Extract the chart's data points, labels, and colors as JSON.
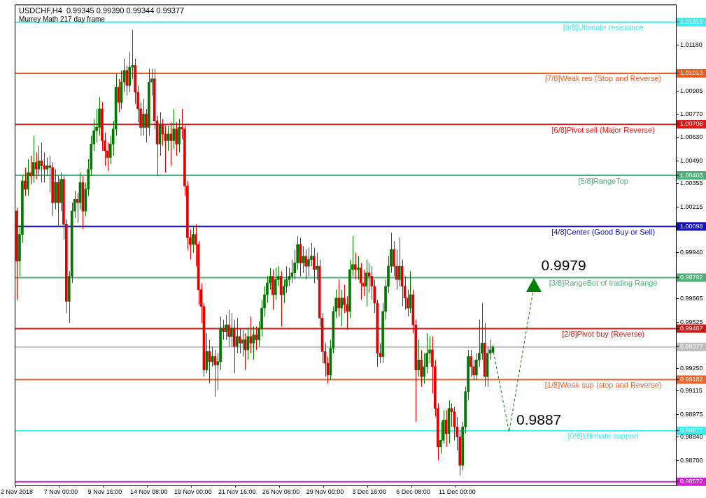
{
  "chart_data": {
    "type": "candlestick",
    "title": "USDCHF,H4  0.99345 0.99390 0.99344 0.99377",
    "subtitle": "Murrey Math 217 day frame",
    "categories": [
      "2 Nov 2018",
      null,
      null,
      null,
      null,
      null,
      null,
      null,
      null,
      null,
      null,
      null,
      null,
      null,
      null,
      null,
      "7 Nov 00:00",
      null,
      null,
      null,
      null,
      null,
      null,
      null,
      null,
      null,
      null,
      null,
      null,
      null,
      null,
      null,
      "9 Nov 16:00",
      null,
      null,
      null,
      null,
      null,
      null,
      null,
      null,
      null,
      null,
      null,
      null,
      null,
      null,
      null,
      "14 Nov 08:00",
      null,
      null,
      null,
      null,
      null,
      null,
      null,
      null,
      null,
      null,
      null,
      null,
      null,
      null,
      null,
      "19 Nov 00:00",
      null,
      null,
      null,
      null,
      null,
      null,
      null,
      null,
      null,
      null,
      null,
      null,
      null,
      null,
      null,
      "21 Nov 16:00",
      null,
      null,
      null,
      null,
      null,
      null,
      null,
      null,
      null,
      null,
      null,
      null,
      null,
      null,
      null,
      "26 Nov 08:00",
      null,
      null,
      null,
      null,
      null,
      null,
      null,
      null,
      null,
      null,
      null,
      null,
      null,
      null,
      null,
      "29 Nov 00:00",
      null,
      null,
      null,
      null,
      null,
      null,
      null,
      null,
      null,
      null,
      null,
      null,
      null,
      null,
      null,
      "3 Dec 16:00",
      null,
      null,
      null,
      null,
      null,
      null,
      null,
      null,
      null,
      null,
      null,
      null,
      null,
      null,
      null,
      "6 Dec 08:00",
      null,
      null,
      null,
      null,
      null,
      null,
      null,
      null,
      null,
      null,
      null,
      null,
      null,
      null,
      null,
      "11 Dec 00:00",
      null,
      null,
      null,
      null,
      null,
      null,
      null,
      null,
      null,
      null,
      null,
      null,
      null,
      null,
      null,
      null,
      null,
      null,
      null,
      null,
      null,
      null,
      null,
      null,
      null,
      null,
      null,
      null,
      null,
      null,
      null,
      null,
      null,
      null,
      null,
      null,
      null,
      null,
      null,
      null,
      null,
      null,
      null,
      null,
      null,
      null,
      null,
      null,
      null,
      null,
      null,
      null,
      null,
      null,
      null,
      null,
      null,
      null,
      null,
      null,
      null,
      null,
      null,
      null,
      null,
      null,
      null,
      null,
      null,
      null,
      null,
      null,
      null,
      null,
      null,
      null,
      null,
      null,
      null
    ],
    "ohlc": [
      [
        1.0019,
        1.0021,
        0.9966,
        0.9989
      ],
      [
        0.9989,
        1.001,
        0.998,
        1.0005
      ],
      [
        1.0005,
        1.004,
        1.0,
        1.0037
      ],
      [
        1.0037,
        1.0045,
        1.0028,
        1.0032
      ],
      [
        1.0032,
        1.005,
        1.0028,
        1.0042
      ],
      [
        1.0042,
        1.0052,
        1.0035,
        1.004
      ],
      [
        1.004,
        1.0064,
        1.0036,
        1.0048
      ],
      [
        1.0048,
        1.0054,
        1.0038,
        1.0044
      ],
      [
        1.0044,
        1.0058,
        1.004,
        1.0049
      ],
      [
        1.0049,
        1.006,
        1.0036,
        1.0046
      ],
      [
        1.0046,
        1.0054,
        1.0036,
        1.0044
      ],
      [
        1.0044,
        1.0051,
        1.004,
        1.0046
      ],
      [
        1.0046,
        1.0052,
        1.003,
        1.0045
      ],
      [
        1.0045,
        1.0048,
        1.0016,
        1.0024
      ],
      [
        1.0024,
        1.0044,
        1.002,
        1.0036
      ],
      [
        1.0036,
        1.004,
        1.001,
        1.0024
      ],
      [
        1.0024,
        1.0042,
        1.0019,
        1.0038
      ],
      [
        1.0038,
        1.004,
        1.0002,
        1.0011
      ],
      [
        1.0011,
        1.0014,
        0.9958,
        0.9965
      ],
      [
        0.9965,
        0.9983,
        0.9952,
        0.998
      ],
      [
        0.998,
        1.0024,
        0.9976,
        1.0019
      ],
      [
        1.0019,
        1.0031,
        1.0015,
        1.0026
      ],
      [
        1.0026,
        1.003,
        1.0012,
        1.0024
      ],
      [
        1.0024,
        1.0042,
        1.002,
        1.0036
      ],
      [
        1.0036,
        1.004,
        1.0008,
        1.0019
      ],
      [
        1.0019,
        1.0036,
        1.0016,
        1.0032
      ],
      [
        1.0032,
        1.005,
        1.0028,
        1.0044
      ],
      [
        1.0044,
        1.0064,
        1.004,
        1.0059
      ],
      [
        1.0059,
        1.0074,
        1.0055,
        1.0067
      ],
      [
        1.0067,
        1.008,
        1.006,
        1.0069
      ],
      [
        1.0069,
        1.0087,
        1.0064,
        1.008
      ],
      [
        1.008,
        1.0084,
        1.0055,
        1.0061
      ],
      [
        1.0061,
        1.0066,
        1.0046,
        1.0055
      ],
      [
        1.0055,
        1.006,
        1.0043,
        1.0051
      ],
      [
        1.0051,
        1.0064,
        1.0047,
        1.0059
      ],
      [
        1.0059,
        1.0073,
        1.0052,
        1.0068
      ],
      [
        1.0068,
        1.0101,
        1.0064,
        1.0093
      ],
      [
        1.0093,
        1.0098,
        1.0078,
        1.0084
      ],
      [
        1.0084,
        1.0103,
        1.008,
        1.0096
      ],
      [
        1.0096,
        1.011,
        1.009,
        1.0103
      ],
      [
        1.0103,
        1.0106,
        1.0088,
        1.0094
      ],
      [
        1.0094,
        1.0114,
        1.009,
        1.0105
      ],
      [
        1.0105,
        1.0127,
        1.0098,
        1.0106
      ],
      [
        1.0106,
        1.011,
        1.0083,
        1.009
      ],
      [
        1.009,
        1.0094,
        1.0072,
        1.008
      ],
      [
        1.008,
        1.0084,
        1.0064,
        1.0069
      ],
      [
        1.0069,
        1.0086,
        1.0064,
        1.0077
      ],
      [
        1.0077,
        1.008,
        1.006,
        1.0069
      ],
      [
        1.0069,
        1.0104,
        1.0064,
        1.0096
      ],
      [
        1.0096,
        1.0104,
        1.0088,
        1.0098
      ],
      [
        1.0098,
        1.0104,
        1.0068,
        1.0073
      ],
      [
        1.0073,
        1.0076,
        1.004,
        1.0059
      ],
      [
        1.0059,
        1.0078,
        1.0052,
        1.0071
      ],
      [
        1.0071,
        1.0074,
        1.0058,
        1.0065
      ],
      [
        1.0065,
        1.007,
        1.0042,
        1.0061
      ],
      [
        1.0061,
        1.007,
        1.0055,
        1.0065
      ],
      [
        1.0065,
        1.0072,
        1.0046,
        1.0061
      ],
      [
        1.0061,
        1.008,
        1.0056,
        1.0068
      ],
      [
        1.0068,
        1.0072,
        1.0052,
        1.0059
      ],
      [
        1.0059,
        1.0074,
        1.0054,
        1.0069
      ],
      [
        1.0069,
        1.008,
        1.0062,
        1.0068
      ],
      [
        1.0068,
        1.007,
        1.0028,
        1.0034
      ],
      [
        1.0034,
        1.0037,
        0.9996,
        1.0003
      ],
      [
        1.0003,
        1.0008,
        0.999,
        0.9999
      ],
      [
        0.9999,
        1.001,
        0.9994,
        1.0005
      ],
      [
        1.0005,
        1.0011,
        0.9986,
        0.9999
      ],
      [
        0.9999,
        1.0001,
        0.9963,
        0.9972
      ],
      [
        0.9972,
        0.9976,
        0.9952,
        0.9962
      ],
      [
        0.9962,
        0.9964,
        0.992,
        0.9924
      ],
      [
        0.9924,
        0.9946,
        0.9922,
        0.9935
      ],
      [
        0.9935,
        0.9942,
        0.9916,
        0.9929
      ],
      [
        0.9929,
        0.9938,
        0.9926,
        0.9932
      ],
      [
        0.9932,
        0.9936,
        0.9908,
        0.9927
      ],
      [
        0.9927,
        0.9934,
        0.9912,
        0.9929
      ],
      [
        0.9929,
        0.9956,
        0.9924,
        0.9949
      ],
      [
        0.9949,
        0.9954,
        0.9942,
        0.9947
      ],
      [
        0.9947,
        0.9957,
        0.9942,
        0.9951
      ],
      [
        0.9951,
        0.996,
        0.9938,
        0.9944
      ],
      [
        0.9944,
        0.9958,
        0.9938,
        0.9949
      ],
      [
        0.9949,
        0.9954,
        0.9922,
        0.9938
      ],
      [
        0.9938,
        0.9955,
        0.9934,
        0.9944
      ],
      [
        0.9944,
        0.9949,
        0.9934,
        0.994
      ],
      [
        0.994,
        0.9948,
        0.9932,
        0.9942
      ],
      [
        0.9942,
        0.9946,
        0.9924,
        0.9936
      ],
      [
        0.9936,
        0.9949,
        0.993,
        0.9944
      ],
      [
        0.9944,
        0.9956,
        0.9934,
        0.994
      ],
      [
        0.994,
        0.995,
        0.993,
        0.9945
      ],
      [
        0.9945,
        0.995,
        0.9936,
        0.9942
      ],
      [
        0.9942,
        0.9953,
        0.9938,
        0.9949
      ],
      [
        0.9949,
        0.9966,
        0.9944,
        0.9961
      ],
      [
        0.9961,
        0.9974,
        0.9956,
        0.9969
      ],
      [
        0.9969,
        0.998,
        0.9964,
        0.9976
      ],
      [
        0.9976,
        0.9985,
        0.9972,
        0.998
      ],
      [
        0.998,
        0.9984,
        0.996,
        0.9969
      ],
      [
        0.9969,
        0.9985,
        0.9966,
        0.9978
      ],
      [
        0.9978,
        0.9986,
        0.9974,
        0.998
      ],
      [
        0.998,
        0.9983,
        0.995,
        0.9969
      ],
      [
        0.9969,
        0.9978,
        0.9964,
        0.9974
      ],
      [
        0.9974,
        0.9986,
        0.997,
        0.9978
      ],
      [
        0.9978,
        0.9985,
        0.9974,
        0.998
      ],
      [
        0.998,
        0.999,
        0.9976,
        0.9982
      ],
      [
        0.9982,
        0.9996,
        0.9978,
        0.9988
      ],
      [
        0.9988,
        1.0004,
        0.9984,
        0.9999
      ],
      [
        0.9999,
        1.0003,
        0.998,
        0.9988
      ],
      [
        0.9988,
        0.9998,
        0.9982,
        0.9992
      ],
      [
        0.9992,
        0.9996,
        0.9978,
        0.9986
      ],
      [
        0.9986,
        0.9997,
        0.998,
        0.999
      ],
      [
        0.999,
        1.0,
        0.9986,
        0.9992
      ],
      [
        0.9992,
        0.9997,
        0.9976,
        0.9984
      ],
      [
        0.9984,
        0.9994,
        0.9978,
        0.9986
      ],
      [
        0.9986,
        0.999,
        0.995,
        0.9955
      ],
      [
        0.9955,
        0.9958,
        0.9928,
        0.9935
      ],
      [
        0.9935,
        0.994,
        0.992,
        0.9928
      ],
      [
        0.9928,
        0.9932,
        0.9916,
        0.9921
      ],
      [
        0.9921,
        0.9942,
        0.9918,
        0.9937
      ],
      [
        0.9937,
        0.9962,
        0.9934,
        0.9959
      ],
      [
        0.9959,
        0.9972,
        0.9955,
        0.9967
      ],
      [
        0.9967,
        0.9978,
        0.9956,
        0.9961
      ],
      [
        0.9961,
        0.9972,
        0.995,
        0.9967
      ],
      [
        0.9967,
        0.9975,
        0.9958,
        0.9963
      ],
      [
        0.9963,
        0.9968,
        0.9948,
        0.9959
      ],
      [
        0.9959,
        0.999,
        0.9955,
        0.9984
      ],
      [
        0.9984,
        1.0004,
        0.998,
        0.9987
      ],
      [
        0.9987,
        0.9994,
        0.9978,
        0.9984
      ],
      [
        0.9984,
        0.9992,
        0.9978,
        0.9985
      ],
      [
        0.9985,
        0.9988,
        0.9966,
        0.9976
      ],
      [
        0.9976,
        0.9984,
        0.9968,
        0.9974
      ],
      [
        0.9974,
        0.999,
        0.9962,
        0.9982
      ],
      [
        0.9982,
        0.9988,
        0.997,
        0.998
      ],
      [
        0.998,
        0.9986,
        0.9966,
        0.9974
      ],
      [
        0.9974,
        0.9978,
        0.9958,
        0.9964
      ],
      [
        0.9964,
        0.9966,
        0.9926,
        0.9934
      ],
      [
        0.9934,
        0.994,
        0.9928,
        0.9932
      ],
      [
        0.9932,
        0.9964,
        0.9928,
        0.9959
      ],
      [
        0.9959,
        0.9978,
        0.9954,
        0.9974
      ],
      [
        0.9974,
        0.9992,
        0.997,
        0.9986
      ],
      [
        0.9986,
        1.0006,
        0.9982,
        0.9996
      ],
      [
        0.9996,
        1.0001,
        0.998,
        0.9986
      ],
      [
        0.9986,
        0.9996,
        0.9972,
        0.9978
      ],
      [
        0.9978,
        1.0003,
        0.9974,
        0.9986
      ],
      [
        0.9986,
        0.999,
        0.9962,
        0.9974
      ],
      [
        0.9974,
        0.998,
        0.996,
        0.9967
      ],
      [
        0.9967,
        0.9972,
        0.9956,
        0.9961
      ],
      [
        0.9961,
        0.9983,
        0.9958,
        0.9969
      ],
      [
        0.9969,
        0.9972,
        0.9946,
        0.9951
      ],
      [
        0.9951,
        0.9954,
        0.9893,
        0.9924
      ],
      [
        0.9924,
        0.9942,
        0.992,
        0.993
      ],
      [
        0.993,
        0.9936,
        0.9914,
        0.992
      ],
      [
        0.992,
        0.9934,
        0.9916,
        0.9926
      ],
      [
        0.9926,
        0.9946,
        0.9922,
        0.9934
      ],
      [
        0.9934,
        0.9944,
        0.9928,
        0.9936
      ],
      [
        0.9936,
        0.9944,
        0.991,
        0.9926
      ],
      [
        0.9926,
        0.993,
        0.9896,
        0.9901
      ],
      [
        0.9901,
        0.9904,
        0.987,
        0.9878
      ],
      [
        0.9878,
        0.9893,
        0.9874,
        0.9882
      ],
      [
        0.9882,
        0.99,
        0.988,
        0.9894
      ],
      [
        0.9894,
        0.99,
        0.9878,
        0.9886
      ],
      [
        0.9886,
        0.9906,
        0.988,
        0.9901
      ],
      [
        0.9901,
        0.9904,
        0.989,
        0.9899
      ],
      [
        0.9899,
        0.9902,
        0.9882,
        0.989
      ],
      [
        0.989,
        0.9896,
        0.9876,
        0.9884
      ],
      [
        0.9884,
        0.9888,
        0.9861,
        0.9867
      ],
      [
        0.9867,
        0.9893,
        0.9864,
        0.989
      ],
      [
        0.989,
        0.9914,
        0.9886,
        0.9911
      ],
      [
        0.9911,
        0.9936,
        0.9906,
        0.9932
      ],
      [
        0.9932,
        0.9936,
        0.992,
        0.9926
      ],
      [
        0.9926,
        0.993,
        0.9918,
        0.9921
      ],
      [
        0.9921,
        0.9934,
        0.9918,
        0.993
      ],
      [
        0.993,
        0.9954,
        0.9926,
        0.9934
      ],
      [
        0.9934,
        0.9964,
        0.993,
        0.994
      ],
      [
        0.994,
        0.9952,
        0.9914,
        0.992
      ],
      [
        0.992,
        0.9938,
        0.9914,
        0.9934
      ],
      [
        0.9934,
        0.9942,
        0.993,
        0.9936
      ],
      [
        0.99345,
        0.9939,
        0.99344,
        0.99377
      ],
      null,
      null,
      null,
      null,
      null,
      null,
      null,
      null,
      null,
      null,
      null,
      null,
      null,
      null,
      null,
      null,
      null,
      null,
      null,
      null,
      null,
      null,
      null,
      null,
      null,
      null,
      null,
      null,
      null,
      null,
      null,
      null,
      null,
      null,
      null,
      null,
      null,
      null,
      null,
      null,
      null,
      null,
      null,
      null,
      null,
      null,
      null,
      null,
      null,
      null,
      null,
      null,
      null,
      null,
      null,
      null,
      null,
      null,
      null,
      null,
      null,
      null,
      null,
      null,
      null,
      null
    ],
    "ylim": [
      0.9855,
      1.0142
    ],
    "yticks": [
      {
        "value": 1.01318,
        "label": "1.01318"
      },
      {
        "value": 1.01013,
        "label": "1.01013"
      },
      {
        "value": 1.00708,
        "label": "1.00708"
      },
      {
        "value": 1.00403,
        "label": "1.00403"
      },
      {
        "value": 1.00098,
        "label": "1.00098"
      },
      {
        "value": 0.99792,
        "label": "0.99792"
      },
      {
        "value": 0.99487,
        "label": "0.99487"
      },
      {
        "value": 0.99377,
        "label": "0.99377"
      },
      {
        "value": 0.99182,
        "label": "0.99182"
      },
      {
        "value": 0.98877,
        "label": "0.98877"
      },
      {
        "value": 0.98572,
        "label": "0.98572"
      },
      {
        "value": 1.0118,
        "label": "1.01180"
      },
      {
        "value": 1.00905,
        "label": "1.00905"
      },
      {
        "value": 1.0077,
        "label": "1.00770"
      },
      {
        "value": 1.0063,
        "label": "1.00630"
      },
      {
        "value": 1.0049,
        "label": "1.00490"
      },
      {
        "value": 1.00355,
        "label": "1.00355"
      },
      {
        "value": 1.00215,
        "label": "1.00215"
      },
      {
        "value": 0.9994,
        "label": "0.99940"
      },
      {
        "value": 0.99665,
        "label": "0.99665"
      },
      {
        "value": 0.99525,
        "label": "0.99525"
      },
      {
        "value": 0.9925,
        "label": "0.99250"
      },
      {
        "value": 0.99115,
        "label": "0.99115"
      },
      {
        "value": 0.98975,
        "label": "0.98975"
      },
      {
        "value": 0.9884,
        "label": "0.98840"
      },
      {
        "value": 0.987,
        "label": "0.98700"
      }
    ],
    "ref_lines": [
      {
        "axis": "y",
        "value": 1.01318,
        "label": "[8/8]Ultimate resistance",
        "color": "#40e8f0"
      },
      {
        "axis": "y",
        "value": 1.01013,
        "label": "[7/8]Weak res (Stop and Reverse)",
        "color": "#f05a1e"
      },
      {
        "axis": "y",
        "value": 1.00708,
        "label": "[6/8]Pivot sell (Major Reverse)",
        "color": "#e81414"
      },
      {
        "axis": "y",
        "value": 1.00403,
        "label": "[5/8]RangeTop",
        "color": "#4caf78"
      },
      {
        "axis": "y",
        "value": 1.00098,
        "label": "[4/8]Center (Good Buy or Sell)",
        "color": "#1010c8"
      },
      {
        "axis": "y",
        "value": 0.99792,
        "label": "[3/8]RangeBot of trading Range",
        "color": "#4caf78"
      },
      {
        "axis": "y",
        "value": 0.99487,
        "label": "[2/8]Pivot buy (Reverse)",
        "color": "#d01818"
      },
      {
        "axis": "y",
        "value": 0.99377,
        "label": null,
        "color": "#bdbdbd"
      },
      {
        "axis": "y",
        "value": 0.99182,
        "label": "[1/8]Weak sup (stop and Reverse)",
        "color": "#e8642c"
      },
      {
        "axis": "y",
        "value": 0.98877,
        "label": "[0/8]Ultimate support",
        "color": "#30f0f0"
      },
      {
        "axis": "y",
        "value": 0.98572,
        "label": null,
        "color": "#d020d0"
      }
    ],
    "annotations": [
      {
        "text": "0.9979",
        "y": 0.9979
      },
      {
        "text": "0.9887",
        "y": 0.9887
      }
    ],
    "grid": false,
    "legend": false
  }
}
